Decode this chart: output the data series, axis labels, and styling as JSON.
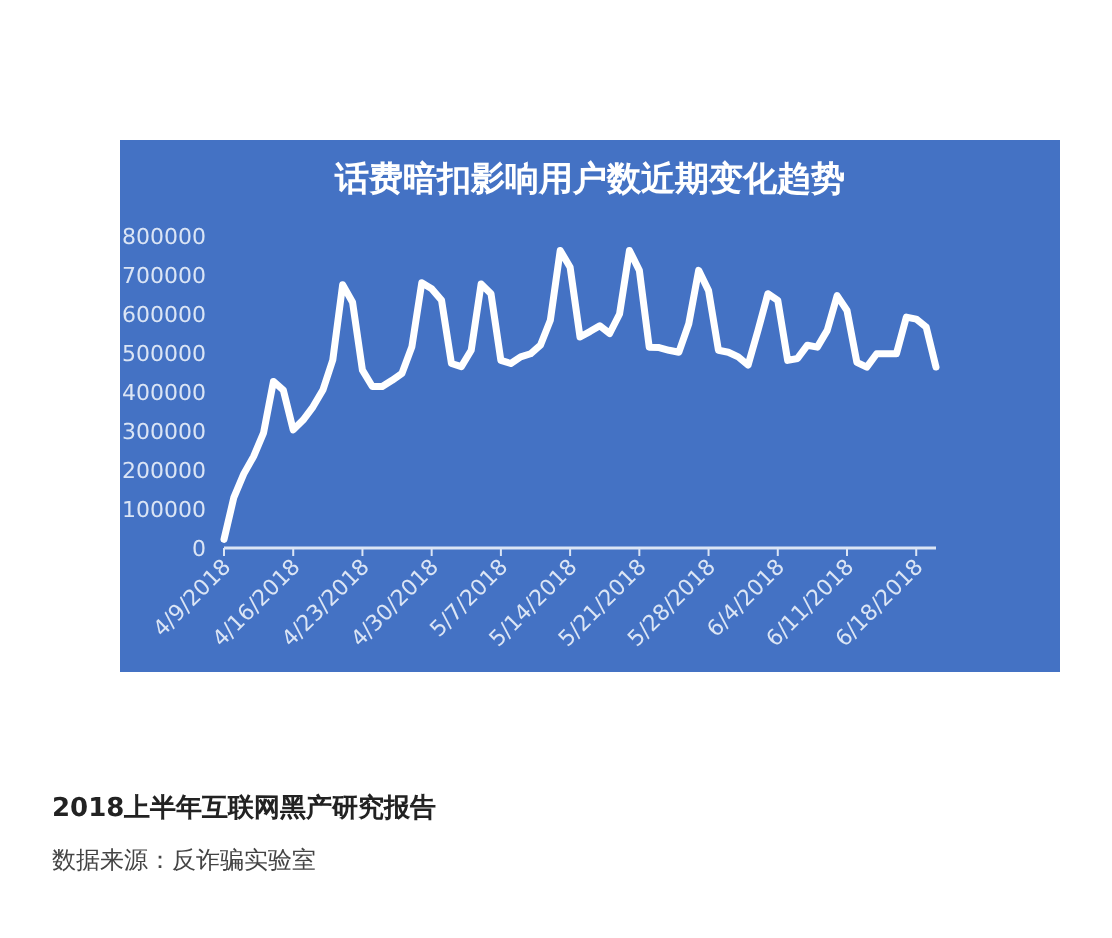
{
  "chart_data": {
    "type": "line",
    "title": "话费暗扣影响用户数近期变化趋势",
    "x": [
      "2018-04-09",
      "2018-04-10",
      "2018-04-11",
      "2018-04-12",
      "2018-04-13",
      "2018-04-14",
      "2018-04-15",
      "2018-04-16",
      "2018-04-17",
      "2018-04-18",
      "2018-04-19",
      "2018-04-20",
      "2018-04-21",
      "2018-04-22",
      "2018-04-23",
      "2018-04-24",
      "2018-04-25",
      "2018-04-26",
      "2018-04-27",
      "2018-04-28",
      "2018-04-29",
      "2018-04-30",
      "2018-05-01",
      "2018-05-02",
      "2018-05-03",
      "2018-05-04",
      "2018-05-05",
      "2018-05-06",
      "2018-05-07",
      "2018-05-08",
      "2018-05-09",
      "2018-05-10",
      "2018-05-11",
      "2018-05-12",
      "2018-05-13",
      "2018-05-14",
      "2018-05-15",
      "2018-05-16",
      "2018-05-17",
      "2018-05-18",
      "2018-05-19",
      "2018-05-20",
      "2018-05-21",
      "2018-05-22",
      "2018-05-23",
      "2018-05-24",
      "2018-05-25",
      "2018-05-26",
      "2018-05-27",
      "2018-05-28",
      "2018-05-29",
      "2018-05-30",
      "2018-05-31",
      "2018-06-01",
      "2018-06-02",
      "2018-06-03",
      "2018-06-04",
      "2018-06-05",
      "2018-06-06",
      "2018-06-07",
      "2018-06-08",
      "2018-06-09",
      "2018-06-10",
      "2018-06-11",
      "2018-06-12",
      "2018-06-13",
      "2018-06-14",
      "2018-06-15",
      "2018-06-16",
      "2018-06-17",
      "2018-06-18",
      "2018-06-19",
      "2018-06-20"
    ],
    "series": [
      {
        "color": "#ffffff",
        "values": [
          22000,
          130000,
          190000,
          235000,
          295000,
          427000,
          405000,
          303000,
          328000,
          362000,
          405000,
          482000,
          675000,
          630000,
          456000,
          414000,
          414000,
          430000,
          448000,
          516000,
          680000,
          665000,
          635000,
          473000,
          465000,
          507000,
          677000,
          652000,
          481000,
          473000,
          490000,
          498000,
          520000,
          584000,
          763000,
          720000,
          541000,
          555000,
          570000,
          550000,
          600000,
          763000,
          712000,
          515000,
          514000,
          507000,
          502000,
          575000,
          712000,
          660000,
          507000,
          502000,
          490000,
          469000,
          558000,
          652000,
          635000,
          481000,
          486000,
          520000,
          515000,
          558000,
          647000,
          609000,
          476000,
          464000,
          498000,
          498000,
          498000,
          592000,
          587000,
          567000,
          464000
        ]
      }
    ],
    "line_style": "solid",
    "xlim": [
      "2018-04-09",
      "2018-06-20"
    ],
    "xticks": [
      {
        "value": "2018-04-09",
        "label": "4/9/2018"
      },
      {
        "value": "2018-04-16",
        "label": "4/16/2018"
      },
      {
        "value": "2018-04-23",
        "label": "4/23/2018"
      },
      {
        "value": "2018-04-30",
        "label": "4/30/2018"
      },
      {
        "value": "2018-05-07",
        "label": "5/7/2018"
      },
      {
        "value": "2018-05-14",
        "label": "5/14/2018"
      },
      {
        "value": "2018-05-21",
        "label": "5/21/2018"
      },
      {
        "value": "2018-05-28",
        "label": "5/28/2018"
      },
      {
        "value": "2018-06-04",
        "label": "6/4/2018"
      },
      {
        "value": "2018-06-11",
        "label": "6/11/2018"
      },
      {
        "value": "2018-06-18",
        "label": "6/18/2018"
      }
    ],
    "ylim": [
      0,
      800000
    ],
    "yticks": [
      0,
      100000,
      200000,
      300000,
      400000,
      500000,
      600000,
      700000,
      800000
    ],
    "annotations": [
      "2018上半年互联网黑产研究报告",
      "数据来源：反诈骗实验室"
    ]
  }
}
